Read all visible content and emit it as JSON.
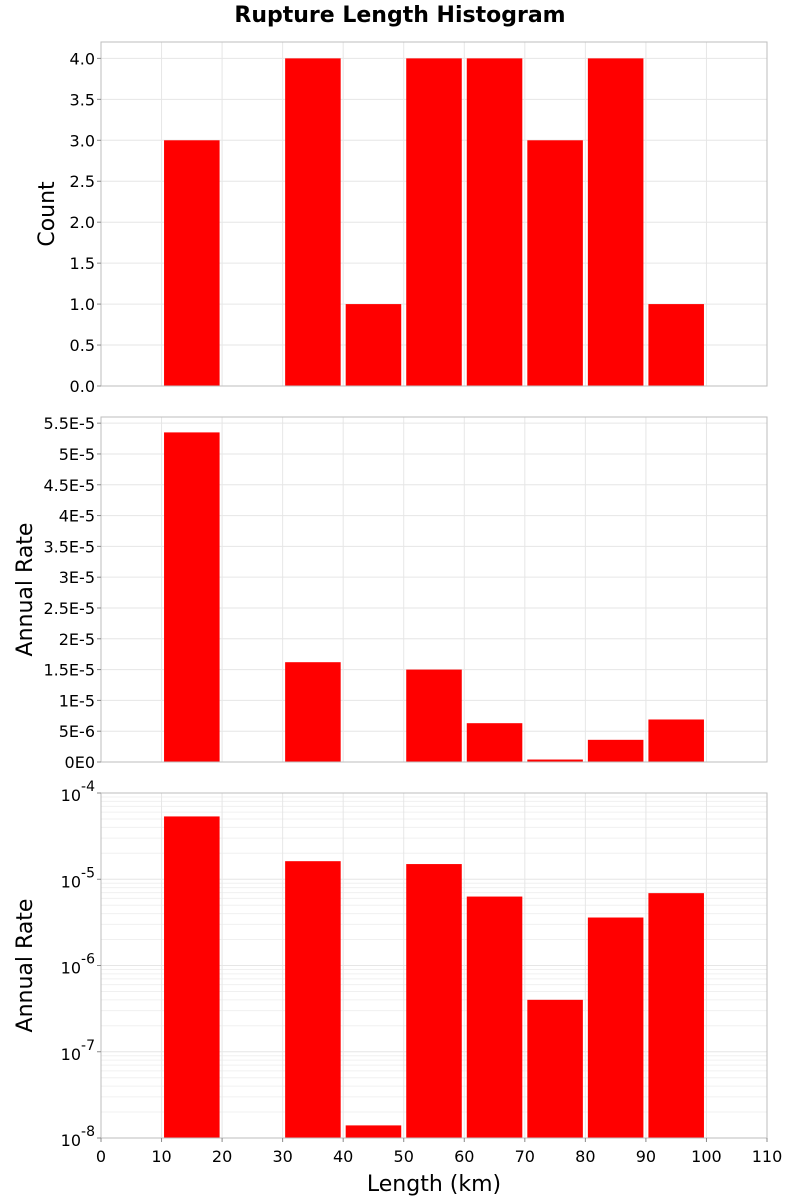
{
  "chart_data": {
    "title": "Rupture Length Histogram",
    "x": {
      "label": "Length (km)",
      "range": [
        0,
        110
      ],
      "ticks": [
        "0",
        "10",
        "20",
        "30",
        "40",
        "50",
        "60",
        "70",
        "80",
        "90",
        "100",
        "110"
      ]
    },
    "bins": [
      {
        "start": 10,
        "end": 20
      },
      {
        "start": 30,
        "end": 40
      },
      {
        "start": 40,
        "end": 50
      },
      {
        "start": 50,
        "end": 60
      },
      {
        "start": 60,
        "end": 70
      },
      {
        "start": 70,
        "end": 80
      },
      {
        "start": 80,
        "end": 90
      },
      {
        "start": 90,
        "end": 100
      }
    ],
    "bar_color": "#ff0000",
    "grid": true,
    "panels": [
      {
        "type": "bar",
        "ylabel": "Count",
        "scale": "linear",
        "ylim": [
          0,
          4.2
        ],
        "yticks": [
          {
            "value": 0,
            "label": "0.0"
          },
          {
            "value": 0.5,
            "label": "0.5"
          },
          {
            "value": 1,
            "label": "1.0"
          },
          {
            "value": 1.5,
            "label": "1.5"
          },
          {
            "value": 2,
            "label": "2.0"
          },
          {
            "value": 2.5,
            "label": "2.5"
          },
          {
            "value": 3,
            "label": "3.0"
          },
          {
            "value": 3.5,
            "label": "3.5"
          },
          {
            "value": 4,
            "label": "4.0"
          }
        ],
        "values": [
          3,
          4,
          1,
          4,
          4,
          3,
          4,
          1
        ]
      },
      {
        "type": "bar",
        "ylabel": "Annual Rate",
        "scale": "linear",
        "ylim": [
          0,
          5.6e-05
        ],
        "yticks": [
          {
            "value": 0,
            "label": "0E0"
          },
          {
            "value": 5e-06,
            "label": "5E-6"
          },
          {
            "value": 1e-05,
            "label": "1E-5"
          },
          {
            "value": 1.5e-05,
            "label": "1.5E-5"
          },
          {
            "value": 2e-05,
            "label": "2E-5"
          },
          {
            "value": 2.5e-05,
            "label": "2.5E-5"
          },
          {
            "value": 3e-05,
            "label": "3E-5"
          },
          {
            "value": 3.5e-05,
            "label": "3.5E-5"
          },
          {
            "value": 4e-05,
            "label": "4E-5"
          },
          {
            "value": 4.5e-05,
            "label": "4.5E-5"
          },
          {
            "value": 5e-05,
            "label": "5E-5"
          },
          {
            "value": 5.5e-05,
            "label": "5.5E-5"
          }
        ],
        "values": [
          5.35e-05,
          1.62e-05,
          1.4e-08,
          1.5e-05,
          6.3e-06,
          4e-07,
          3.6e-06,
          6.9e-06
        ]
      },
      {
        "type": "bar",
        "ylabel": "Annual Rate",
        "scale": "log",
        "ylim": [
          1e-08,
          0.0001
        ],
        "yticks": [
          {
            "value": 1e-08,
            "base": "10",
            "exp": "-8"
          },
          {
            "value": 1e-07,
            "base": "10",
            "exp": "-7"
          },
          {
            "value": 1e-06,
            "base": "10",
            "exp": "-6"
          },
          {
            "value": 1e-05,
            "base": "10",
            "exp": "-5"
          },
          {
            "value": 0.0001,
            "base": "10",
            "exp": "-4"
          }
        ],
        "values": [
          5.35e-05,
          1.62e-05,
          1.4e-08,
          1.5e-05,
          6.3e-06,
          4e-07,
          3.6e-06,
          6.9e-06
        ]
      }
    ]
  }
}
